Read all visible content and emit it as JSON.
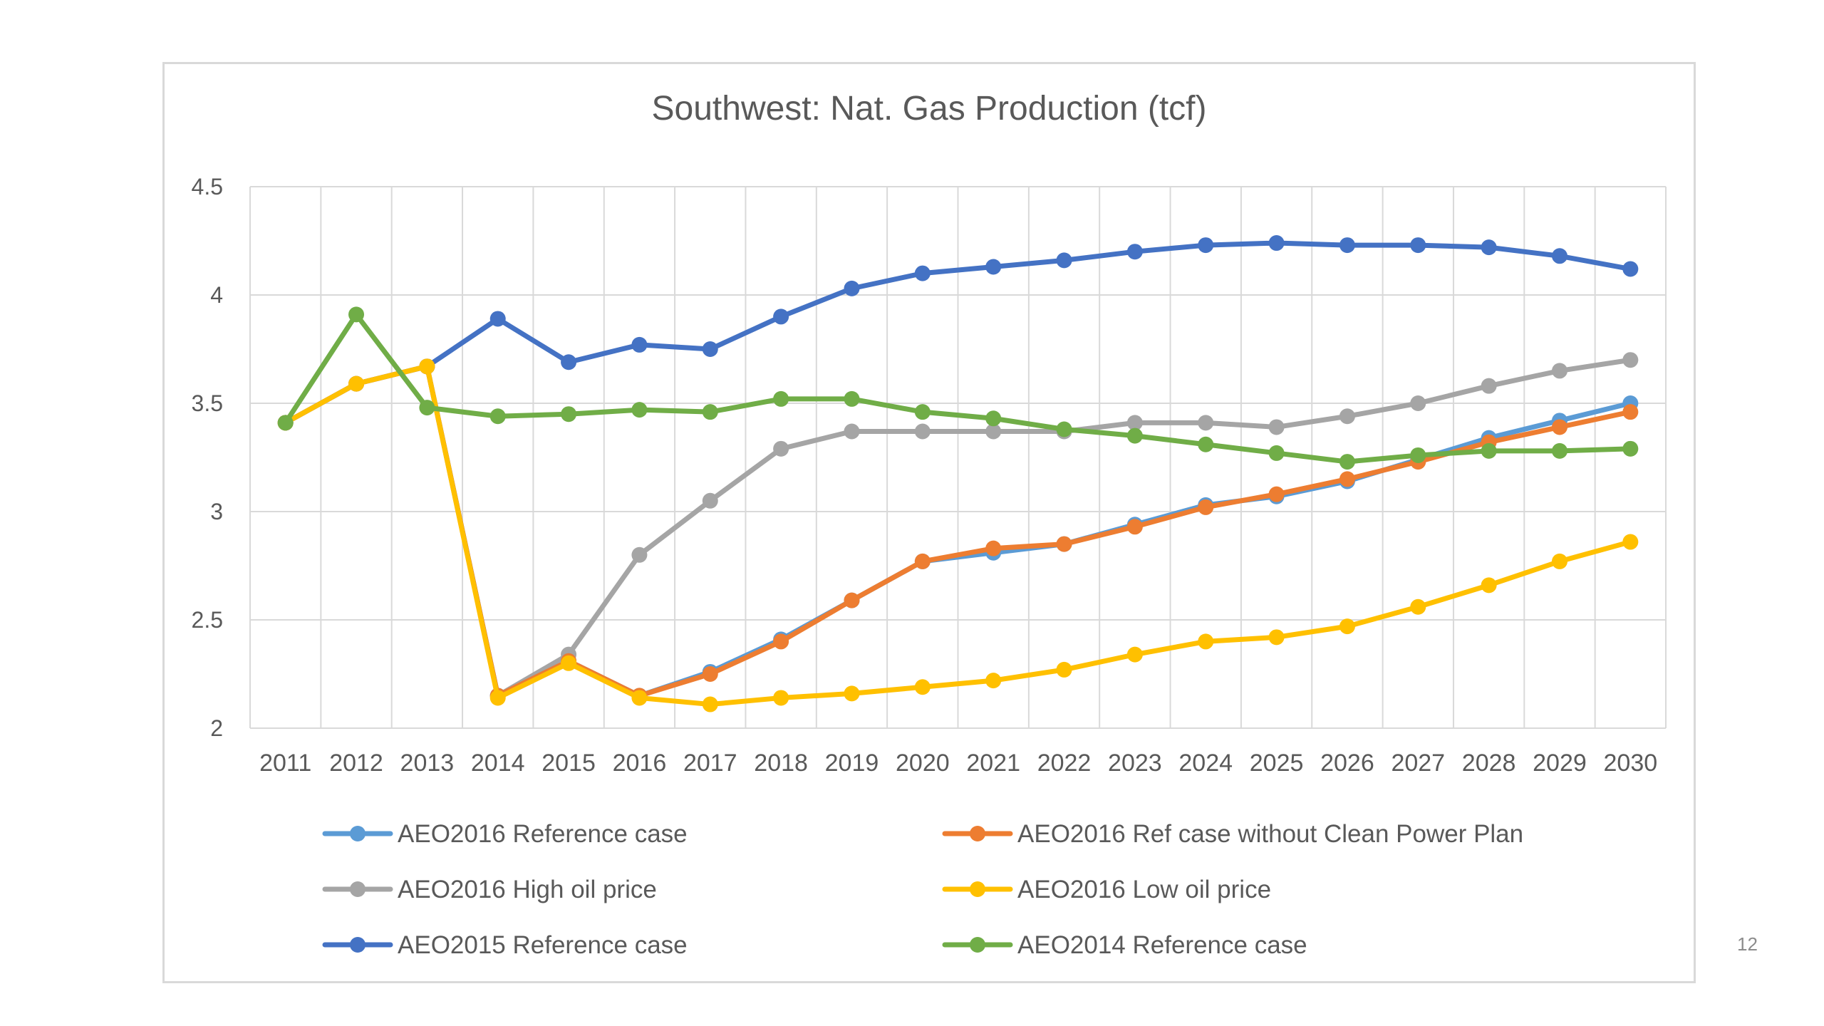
{
  "slide_number": "12",
  "chart_data": {
    "type": "line",
    "title": "Southwest: Nat. Gas Production (tcf)",
    "xlabel": "",
    "ylabel": "",
    "ylim": [
      2,
      4.5
    ],
    "yticks": [
      "2",
      "2.5",
      "3",
      "3.5",
      "4",
      "4.5"
    ],
    "x": [
      "2011",
      "2012",
      "2013",
      "2014",
      "2015",
      "2016",
      "2017",
      "2018",
      "2019",
      "2020",
      "2021",
      "2022",
      "2023",
      "2024",
      "2025",
      "2026",
      "2027",
      "2028",
      "2029",
      "2030"
    ],
    "grid": true,
    "legend_position": "bottom",
    "series": [
      {
        "name": "AEO2016 Reference case",
        "color": "#5b9bd5",
        "values": [
          3.41,
          3.59,
          3.67,
          2.15,
          2.31,
          2.15,
          2.26,
          2.41,
          2.59,
          2.77,
          2.81,
          2.85,
          2.94,
          3.03,
          3.07,
          3.14,
          3.24,
          3.34,
          3.42,
          3.5
        ]
      },
      {
        "name": "AEO2016 Ref case without Clean Power Plan",
        "color": "#ed7d31",
        "values": [
          3.41,
          3.59,
          3.67,
          2.15,
          2.31,
          2.15,
          2.25,
          2.4,
          2.59,
          2.77,
          2.83,
          2.85,
          2.93,
          3.02,
          3.08,
          3.15,
          3.23,
          3.32,
          3.39,
          3.46
        ]
      },
      {
        "name": "AEO2016 High oil price",
        "color": "#a5a5a5",
        "values": [
          3.41,
          3.59,
          3.67,
          2.15,
          2.34,
          2.8,
          3.05,
          3.29,
          3.37,
          3.37,
          3.37,
          3.37,
          3.41,
          3.41,
          3.39,
          3.44,
          3.5,
          3.58,
          3.65,
          3.7
        ]
      },
      {
        "name": "AEO2016 Low oil price",
        "color": "#ffc000",
        "values": [
          3.41,
          3.59,
          3.67,
          2.14,
          2.3,
          2.14,
          2.11,
          2.14,
          2.16,
          2.19,
          2.22,
          2.27,
          2.34,
          2.4,
          2.42,
          2.47,
          2.56,
          2.66,
          2.77,
          2.86
        ]
      },
      {
        "name": "AEO2015 Reference case",
        "color": "#4472c4",
        "values": [
          3.41,
          3.59,
          3.67,
          3.89,
          3.69,
          3.77,
          3.75,
          3.9,
          4.03,
          4.1,
          4.13,
          4.16,
          4.2,
          4.23,
          4.24,
          4.23,
          4.23,
          4.22,
          4.18,
          4.12
        ]
      },
      {
        "name": "AEO2014 Reference case",
        "color": "#70ad47",
        "values": [
          3.41,
          3.91,
          3.48,
          3.44,
          3.45,
          3.47,
          3.46,
          3.52,
          3.52,
          3.46,
          3.43,
          3.38,
          3.35,
          3.31,
          3.27,
          3.23,
          3.26,
          3.28,
          3.28,
          3.29
        ]
      }
    ]
  }
}
